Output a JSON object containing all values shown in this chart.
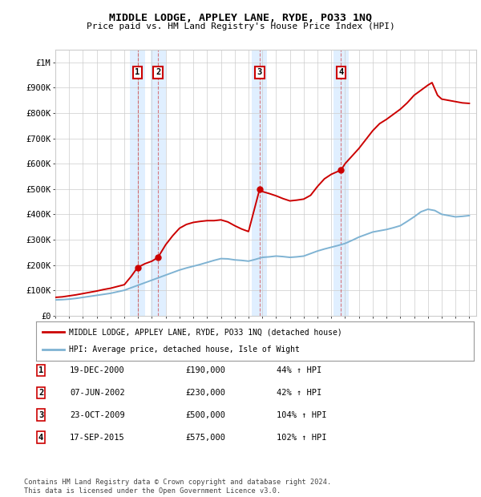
{
  "title": "MIDDLE LODGE, APPLEY LANE, RYDE, PO33 1NQ",
  "subtitle": "Price paid vs. HM Land Registry's House Price Index (HPI)",
  "footnote": "Contains HM Land Registry data © Crown copyright and database right 2024.\nThis data is licensed under the Open Government Licence v3.0.",
  "legend_entry1": "MIDDLE LODGE, APPLEY LANE, RYDE, PO33 1NQ (detached house)",
  "legend_entry2": "HPI: Average price, detached house, Isle of Wight",
  "purchases": [
    {
      "label": "1",
      "date": "19-DEC-2000",
      "price": 190000,
      "pct": "44%",
      "year": 2000.96
    },
    {
      "label": "2",
      "date": "07-JUN-2002",
      "price": 230000,
      "pct": "42%",
      "year": 2002.44
    },
    {
      "label": "3",
      "date": "23-OCT-2009",
      "price": 500000,
      "pct": "104%",
      "year": 2009.81
    },
    {
      "label": "4",
      "date": "17-SEP-2015",
      "price": 575000,
      "pct": "102%",
      "year": 2015.71
    }
  ],
  "hpi_years": [
    1995,
    1995.5,
    1996,
    1996.5,
    1997,
    1997.5,
    1998,
    1998.5,
    1999,
    1999.5,
    2000,
    2000.5,
    2001,
    2001.5,
    2002,
    2002.5,
    2003,
    2003.5,
    2004,
    2004.5,
    2005,
    2005.5,
    2006,
    2006.5,
    2007,
    2007.5,
    2008,
    2008.5,
    2009,
    2009.5,
    2010,
    2010.5,
    2011,
    2011.5,
    2012,
    2012.5,
    2013,
    2013.5,
    2014,
    2014.5,
    2015,
    2015.5,
    2016,
    2016.5,
    2017,
    2017.5,
    2018,
    2018.5,
    2019,
    2019.5,
    2020,
    2020.5,
    2021,
    2021.5,
    2022,
    2022.5,
    2023,
    2023.5,
    2024,
    2024.5,
    2025
  ],
  "hpi_values": [
    62000,
    63000,
    65000,
    68000,
    72000,
    76000,
    80000,
    84000,
    88000,
    94000,
    100000,
    110000,
    120000,
    130000,
    140000,
    150000,
    160000,
    170000,
    180000,
    188000,
    195000,
    202000,
    210000,
    218000,
    225000,
    224000,
    220000,
    218000,
    215000,
    222000,
    230000,
    232000,
    235000,
    233000,
    230000,
    232000,
    235000,
    245000,
    255000,
    263000,
    270000,
    277000,
    285000,
    297000,
    310000,
    320000,
    330000,
    335000,
    340000,
    347000,
    355000,
    372000,
    390000,
    410000,
    420000,
    415000,
    400000,
    395000,
    390000,
    392000,
    395000
  ],
  "red_line_years": [
    1995,
    1995.5,
    1996,
    1996.5,
    1997,
    1997.5,
    1998,
    1998.5,
    1999,
    1999.5,
    2000,
    2000.5,
    2000.96,
    2001.5,
    2002,
    2002.44,
    2003,
    2003.5,
    2004,
    2004.5,
    2005,
    2005.5,
    2006,
    2006.5,
    2007,
    2007.5,
    2008,
    2008.5,
    2009,
    2009.81,
    2010,
    2010.5,
    2011,
    2011.5,
    2012,
    2012.5,
    2013,
    2013.5,
    2014,
    2014.5,
    2015,
    2015.71,
    2016,
    2016.5,
    2017,
    2017.5,
    2018,
    2018.5,
    2019,
    2019.5,
    2020,
    2020.5,
    2021,
    2021.5,
    2022,
    2022.3,
    2022.7,
    2023,
    2023.5,
    2024,
    2024.5,
    2025
  ],
  "red_line_values": [
    72000,
    74000,
    78000,
    82000,
    87000,
    92000,
    97000,
    103000,
    108000,
    115000,
    122000,
    155000,
    190000,
    205000,
    215000,
    230000,
    280000,
    315000,
    345000,
    360000,
    368000,
    372000,
    375000,
    375000,
    378000,
    370000,
    355000,
    342000,
    332000,
    500000,
    490000,
    482000,
    473000,
    462000,
    453000,
    456000,
    460000,
    475000,
    510000,
    540000,
    558000,
    575000,
    600000,
    630000,
    660000,
    695000,
    730000,
    758000,
    775000,
    795000,
    815000,
    840000,
    870000,
    890000,
    910000,
    920000,
    870000,
    855000,
    850000,
    845000,
    840000,
    838000
  ],
  "ylim": [
    0,
    1050000
  ],
  "xlim": [
    1995,
    2025.5
  ],
  "yticks": [
    0,
    100000,
    200000,
    300000,
    400000,
    500000,
    600000,
    700000,
    800000,
    900000,
    1000000
  ],
  "ytick_labels": [
    "£0",
    "£100K",
    "£200K",
    "£300K",
    "£400K",
    "£500K",
    "£600K",
    "£700K",
    "£800K",
    "£900K",
    "£1M"
  ],
  "xtick_years": [
    1995,
    1996,
    1997,
    1998,
    1999,
    2000,
    2001,
    2002,
    2003,
    2004,
    2005,
    2006,
    2007,
    2008,
    2009,
    2010,
    2011,
    2012,
    2013,
    2014,
    2015,
    2016,
    2017,
    2018,
    2019,
    2020,
    2021,
    2022,
    2023,
    2024,
    2025
  ],
  "red_color": "#cc0000",
  "blue_color": "#7fb3d3",
  "bg_highlight": "#ddeeff",
  "box_color": "#cc0000",
  "grid_color": "#cccccc",
  "plot_bg": "#ffffff"
}
